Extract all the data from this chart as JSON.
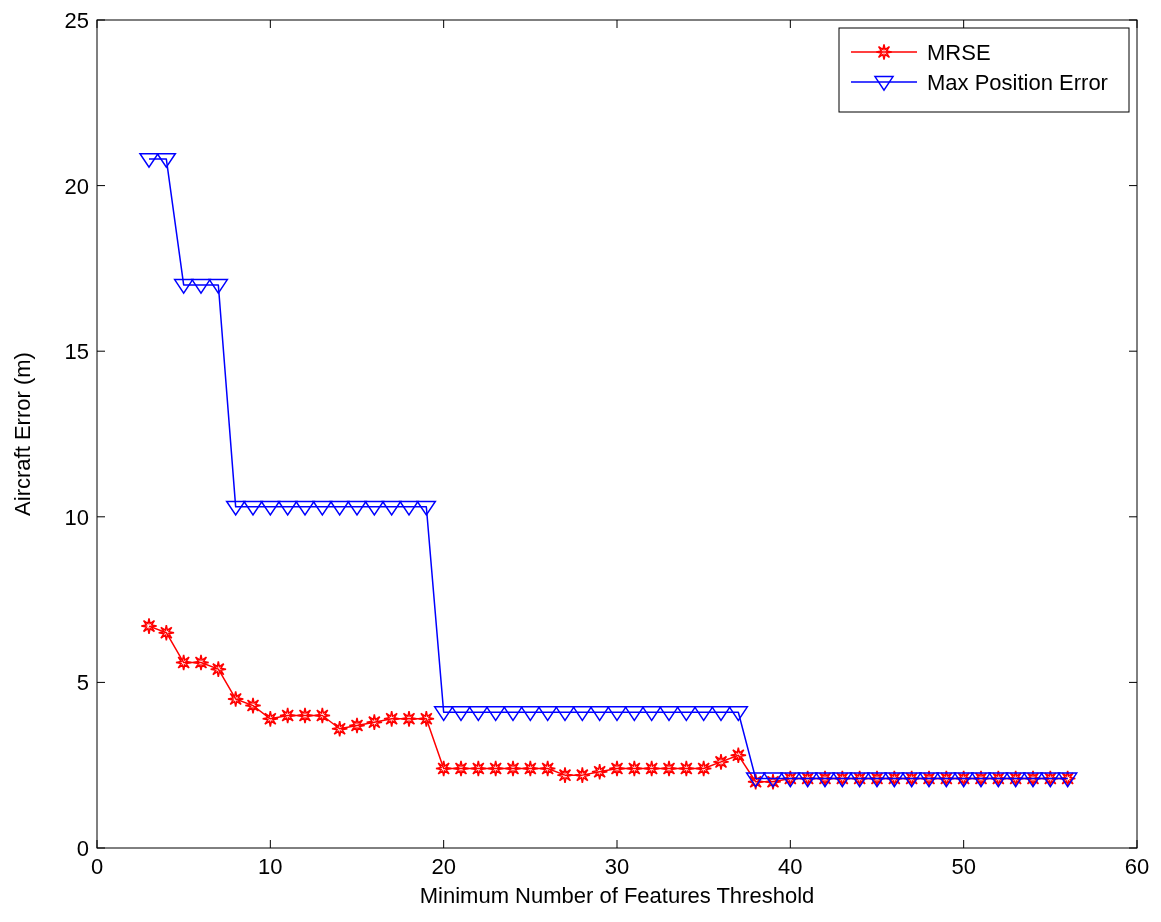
{
  "chart_data": {
    "type": "line",
    "xlabel": "Minimum Number of Features Threshold",
    "ylabel": "Aircraft Error (m)",
    "x": [
      3,
      4,
      5,
      6,
      7,
      8,
      9,
      10,
      11,
      12,
      13,
      14,
      15,
      16,
      17,
      18,
      19,
      20,
      21,
      22,
      23,
      24,
      25,
      26,
      27,
      28,
      29,
      30,
      31,
      32,
      33,
      34,
      35,
      36,
      37,
      38,
      39,
      40,
      41,
      42,
      43,
      44,
      45,
      46,
      47,
      48,
      49,
      50,
      51,
      52,
      53,
      54,
      55,
      56
    ],
    "series": [
      {
        "name": "MRSE",
        "color": "#ff0000",
        "marker": "star",
        "values": [
          6.7,
          6.5,
          5.6,
          5.6,
          5.4,
          4.5,
          4.3,
          3.9,
          4.0,
          4.0,
          4.0,
          3.6,
          3.7,
          3.8,
          3.9,
          3.9,
          3.9,
          2.4,
          2.4,
          2.4,
          2.4,
          2.4,
          2.4,
          2.4,
          2.2,
          2.2,
          2.3,
          2.4,
          2.4,
          2.4,
          2.4,
          2.4,
          2.4,
          2.6,
          2.8,
          2.0,
          2.0,
          2.1,
          2.1,
          2.1,
          2.1,
          2.1,
          2.1,
          2.1,
          2.1,
          2.1,
          2.1,
          2.1,
          2.1,
          2.1,
          2.1,
          2.1,
          2.1,
          2.1
        ]
      },
      {
        "name": "Max Position Error",
        "color": "#0000ff",
        "marker": "triangle",
        "values": [
          20.8,
          20.8,
          17.0,
          17.0,
          17.0,
          10.3,
          10.3,
          10.3,
          10.3,
          10.3,
          10.3,
          10.3,
          10.3,
          10.3,
          10.3,
          10.3,
          10.3,
          4.1,
          4.1,
          4.1,
          4.1,
          4.1,
          4.1,
          4.1,
          4.1,
          4.1,
          4.1,
          4.1,
          4.1,
          4.1,
          4.1,
          4.1,
          4.1,
          4.1,
          4.1,
          2.1,
          2.1,
          2.1,
          2.1,
          2.1,
          2.1,
          2.1,
          2.1,
          2.1,
          2.1,
          2.1,
          2.1,
          2.1,
          2.1,
          2.1,
          2.1,
          2.1,
          2.1,
          2.1
        ]
      }
    ],
    "xlim": [
      0,
      60
    ],
    "xticks": [
      0,
      10,
      20,
      30,
      40,
      50,
      60
    ],
    "ylim": [
      0,
      25
    ],
    "yticks": [
      0,
      5,
      10,
      15,
      20,
      25
    ],
    "grid": false,
    "legend": "top right",
    "line_style": "solid"
  }
}
